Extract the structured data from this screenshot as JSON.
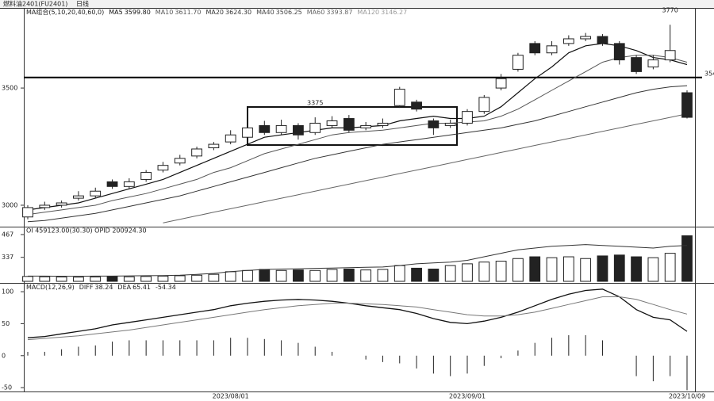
{
  "header": {
    "symbol": "燃料油2401(FU2401)",
    "period": "日线"
  },
  "chart_data": [
    {
      "type": "candlestick",
      "legend_title": "MA组合(5,10,20,40,60,0)",
      "x": [
        null,
        null,
        null,
        null,
        null,
        null,
        null,
        null,
        null,
        null,
        null,
        null,
        "2023/08/01",
        null,
        null,
        null,
        null,
        null,
        null,
        null,
        null,
        null,
        null,
        null,
        null,
        null,
        "2023/09/01",
        null,
        null,
        null,
        null,
        null,
        null,
        null,
        null,
        null,
        null,
        null,
        null,
        "2023/10/09"
      ],
      "open": [
        2950,
        2990,
        3000,
        3030,
        3040,
        3100,
        3080,
        3110,
        3150,
        3180,
        3210,
        3245,
        3270,
        3290,
        3340,
        3310,
        3340,
        3310,
        3340,
        3370,
        3330,
        3340,
        3425,
        3440,
        3360,
        3340,
        3350,
        3400,
        3500,
        3580,
        3690,
        3650,
        3690,
        3710,
        3720,
        3690,
        3630,
        3590,
        3620,
        3480
      ],
      "high": [
        3000,
        3015,
        3020,
        3060,
        3075,
        3110,
        3115,
        3150,
        3185,
        3215,
        3250,
        3270,
        3320,
        3345,
        3360,
        3365,
        3350,
        3375,
        3380,
        3385,
        3355,
        3370,
        3505,
        3450,
        3370,
        3365,
        3410,
        3470,
        3560,
        3650,
        3700,
        3700,
        3725,
        3735,
        3730,
        3700,
        3640,
        3640,
        3770,
        3490
      ],
      "low": [
        2940,
        2980,
        2990,
        3020,
        3030,
        3070,
        3070,
        3100,
        3140,
        3170,
        3200,
        3235,
        3260,
        3280,
        3300,
        3300,
        3280,
        3300,
        3330,
        3310,
        3320,
        3330,
        3415,
        3400,
        3300,
        3330,
        3340,
        3390,
        3490,
        3570,
        3640,
        3640,
        3680,
        3700,
        3680,
        3600,
        3560,
        3580,
        3610,
        3370
      ],
      "close": [
        2990,
        3000,
        3010,
        3040,
        3060,
        3080,
        3100,
        3140,
        3170,
        3200,
        3240,
        3260,
        3300,
        3330,
        3310,
        3340,
        3300,
        3350,
        3360,
        3320,
        3340,
        3350,
        3495,
        3410,
        3330,
        3350,
        3400,
        3460,
        3540,
        3640,
        3650,
        3680,
        3710,
        3720,
        3690,
        3620,
        3570,
        3620,
        3660,
        3375
      ],
      "up_color": "#ffffff",
      "down_color": "#222222",
      "ylim": [
        2912,
        3835
      ],
      "yticks": [
        3000,
        3500
      ],
      "hline": 3545,
      "annotations": [
        {
          "label": "3770",
          "value": 3770
        },
        {
          "label": "3375",
          "value": 3375
        }
      ],
      "ma": [
        {
          "name": "MA5",
          "last": {
            "value": 3599.8,
            "label": "3599.80"
          },
          "color": "#111111",
          "values": [
            2980,
            2990,
            3000,
            3010,
            3030,
            3050,
            3070,
            3090,
            3110,
            3140,
            3170,
            3200,
            3230,
            3260,
            3290,
            3300,
            3310,
            3320,
            3330,
            3330,
            3335,
            3340,
            3360,
            3370,
            3380,
            3370,
            3370,
            3380,
            3420,
            3480,
            3540,
            3590,
            3650,
            3680,
            3690,
            3680,
            3660,
            3630,
            3620,
            3600
          ]
        },
        {
          "name": "MA10",
          "last": {
            "value": 3611.7,
            "label": "3611.70"
          },
          "color": "#555555",
          "values": [
            2960,
            2970,
            2980,
            2990,
            3000,
            3020,
            3035,
            3050,
            3070,
            3090,
            3110,
            3140,
            3160,
            3190,
            3220,
            3240,
            3260,
            3280,
            3300,
            3310,
            3315,
            3320,
            3330,
            3340,
            3350,
            3350,
            3355,
            3360,
            3380,
            3410,
            3450,
            3490,
            3530,
            3570,
            3610,
            3630,
            3640,
            3640,
            3630,
            3610
          ]
        },
        {
          "name": "MA20",
          "last": {
            "value": 3624.3,
            "label": "3624.30"
          },
          "color": "#333333",
          "values": [
            2930,
            2935,
            2945,
            2955,
            2965,
            2980,
            2995,
            3010,
            3025,
            3040,
            3060,
            3080,
            3100,
            3120,
            3140,
            3160,
            3180,
            3200,
            3215,
            3230,
            3245,
            3260,
            3270,
            3280,
            3290,
            3300,
            3310,
            3320,
            3330,
            3345,
            3360,
            3380,
            3400,
            3420,
            3440,
            3460,
            3480,
            3495,
            3505,
            3510
          ]
        },
        {
          "name": "MA40",
          "last": {
            "value": 3506.25,
            "label": "3506.25"
          },
          "color": "#444444"
        },
        {
          "name": "MA60",
          "last": {
            "value": 3393.87,
            "label": "3393.87"
          },
          "color": "#666666",
          "values": [
            null,
            null,
            null,
            null,
            null,
            null,
            null,
            null,
            2925,
            2940,
            2955,
            2970,
            2985,
            3000,
            3015,
            3030,
            3045,
            3060,
            3075,
            3090,
            3105,
            3120,
            3135,
            3150,
            3165,
            3180,
            3195,
            3210,
            3225,
            3240,
            3255,
            3270,
            3285,
            3300,
            3315,
            3330,
            3345,
            3360,
            3375,
            3390
          ]
        },
        {
          "name": "MA120",
          "last": {
            "value": 3146.27,
            "label": "3146.27"
          },
          "color": "#999999"
        }
      ]
    },
    {
      "type": "bar",
      "title": "OI  459123.00(30.30)  OPID 200924.30",
      "values": [
        228,
        226,
        225,
        224,
        225,
        227,
        226,
        228,
        230,
        232,
        235,
        240,
        255,
        262,
        268,
        262,
        265,
        262,
        268,
        270,
        265,
        268,
        290,
        275,
        270,
        290,
        300,
        310,
        315,
        330,
        340,
        335,
        340,
        330,
        345,
        350,
        340,
        335,
        360,
        460
      ],
      "line": [
        230,
        230,
        229,
        229,
        230,
        230,
        231,
        232,
        233,
        235,
        240,
        245,
        255,
        262,
        268,
        270,
        272,
        274,
        276,
        278,
        280,
        282,
        290,
        300,
        305,
        310,
        320,
        340,
        360,
        380,
        390,
        400,
        405,
        410,
        405,
        400,
        395,
        390,
        400,
        405
      ],
      "ylim": [
        200,
        503
      ],
      "yticks": [
        337,
        467
      ]
    },
    {
      "type": "macd",
      "title": "MACD(12,26,9)",
      "diff": {
        "name": "DIFF",
        "last": 38.24,
        "values": [
          28,
          30,
          34,
          38,
          42,
          48,
          52,
          56,
          60,
          64,
          68,
          72,
          78,
          82,
          85,
          87,
          88,
          87,
          85,
          82,
          78,
          75,
          72,
          66,
          58,
          52,
          50,
          54,
          60,
          68,
          78,
          88,
          96,
          102,
          104,
          92,
          72,
          60,
          56,
          38
        ]
      },
      "dea": {
        "name": "DEA",
        "last": 65.41,
        "values": [
          25,
          27,
          29,
          31,
          34,
          37,
          40,
          44,
          48,
          52,
          56,
          60,
          64,
          68,
          72,
          75,
          78,
          80,
          82,
          82,
          81,
          80,
          78,
          76,
          72,
          68,
          64,
          62,
          62,
          64,
          68,
          74,
          80,
          86,
          92,
          92,
          88,
          80,
          72,
          65
        ]
      },
      "macd_last": -54.34,
      "values": [
        6,
        6,
        10,
        14,
        16,
        22,
        24,
        24,
        24,
        24,
        24,
        24,
        28,
        28,
        26,
        24,
        20,
        14,
        6,
        0,
        -6,
        -10,
        -12,
        -20,
        -28,
        -32,
        -28,
        -16,
        -4,
        8,
        20,
        28,
        32,
        32,
        24,
        0,
        -32,
        -40,
        -32,
        -54
      ],
      "ylim": [
        -56,
        110
      ],
      "yticks": [
        -50,
        0,
        50,
        100
      ]
    }
  ]
}
